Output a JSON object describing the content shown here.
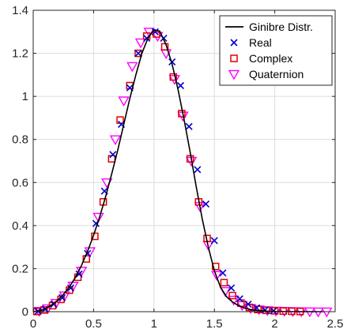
{
  "chart_data": {
    "type": "scatter",
    "title": "",
    "xlabel": "",
    "ylabel": "",
    "xlim": [
      0,
      2.5
    ],
    "ylim": [
      0,
      1.4
    ],
    "xticks": [
      0,
      0.5,
      1,
      1.5,
      2,
      2.5
    ],
    "xtick_labels": [
      "0",
      "0.5",
      "1",
      "1.5",
      "2",
      "2.5"
    ],
    "yticks": [
      0,
      0.2,
      0.4,
      0.6,
      0.8,
      1.0,
      1.2,
      1.4
    ],
    "ytick_labels": [
      "0",
      "0.2",
      "0.4",
      "0.6",
      "0.8",
      "1",
      "1.2",
      "1.4"
    ],
    "grid": true,
    "legend_position": "top-right",
    "colors": {
      "line": "#000000",
      "real": "#0000cc",
      "complex": "#e00000",
      "quaternion": "#ff00ff",
      "grid": "#dcdcdc",
      "axes": "#262626"
    },
    "series": [
      {
        "name": "Ginibre Distr.",
        "kind": "line",
        "marker": "none",
        "x": [
          0,
          0.05,
          0.1,
          0.15,
          0.2,
          0.25,
          0.3,
          0.35,
          0.4,
          0.45,
          0.5,
          0.55,
          0.6,
          0.65,
          0.7,
          0.75,
          0.8,
          0.85,
          0.9,
          0.95,
          1.0,
          1.05,
          1.1,
          1.15,
          1.2,
          1.25,
          1.3,
          1.35,
          1.4,
          1.45,
          1.5,
          1.55,
          1.6,
          1.65,
          1.7,
          1.75,
          1.8,
          1.85,
          1.9,
          1.95,
          2.0,
          2.1,
          2.2,
          2.3,
          2.4
        ],
        "y": [
          0.0,
          0.003,
          0.013,
          0.03,
          0.052,
          0.08,
          0.115,
          0.16,
          0.215,
          0.28,
          0.355,
          0.44,
          0.535,
          0.64,
          0.75,
          0.87,
          0.99,
          1.1,
          1.2,
          1.27,
          1.31,
          1.3,
          1.24,
          1.15,
          1.03,
          0.89,
          0.74,
          0.58,
          0.43,
          0.3,
          0.19,
          0.115,
          0.07,
          0.045,
          0.028,
          0.017,
          0.01,
          0.006,
          0.004,
          0.002,
          0.001,
          0.0005,
          0.0002,
          0.0001,
          0.0
        ]
      },
      {
        "name": "Real",
        "kind": "scatter",
        "marker": "x",
        "x": [
          0.04,
          0.1,
          0.17,
          0.24,
          0.31,
          0.38,
          0.45,
          0.52,
          0.59,
          0.66,
          0.73,
          0.8,
          0.87,
          0.94,
          1.01,
          1.08,
          1.15,
          1.22,
          1.29,
          1.36,
          1.43,
          1.5,
          1.57,
          1.64,
          1.71,
          1.78,
          1.85,
          1.92,
          1.99
        ],
        "y": [
          0.002,
          0.012,
          0.035,
          0.065,
          0.11,
          0.175,
          0.27,
          0.41,
          0.56,
          0.73,
          0.87,
          1.04,
          1.2,
          1.27,
          1.3,
          1.27,
          1.16,
          1.05,
          0.86,
          0.66,
          0.5,
          0.33,
          0.18,
          0.11,
          0.06,
          0.035,
          0.018,
          0.008,
          0.004
        ]
      },
      {
        "name": "Complex",
        "kind": "scatter",
        "marker": "square",
        "x": [
          0.03,
          0.09,
          0.16,
          0.23,
          0.3,
          0.37,
          0.44,
          0.51,
          0.58,
          0.65,
          0.72,
          0.8,
          0.87,
          0.94,
          1.02,
          1.09,
          1.16,
          1.23,
          1.3,
          1.37,
          1.44,
          1.51,
          1.58,
          1.65,
          1.72,
          1.79,
          1.86,
          1.93,
          2.0,
          2.07,
          2.14,
          2.21
        ],
        "y": [
          0.001,
          0.008,
          0.028,
          0.057,
          0.1,
          0.16,
          0.245,
          0.35,
          0.51,
          0.71,
          0.89,
          1.05,
          1.2,
          1.28,
          1.29,
          1.23,
          1.09,
          0.92,
          0.71,
          0.51,
          0.34,
          0.21,
          0.135,
          0.075,
          0.04,
          0.02,
          0.01,
          0.006,
          0.004,
          0.003,
          0.002,
          0.001
        ]
      },
      {
        "name": "Quaternion",
        "kind": "scatter",
        "marker": "triangle-down",
        "x": [
          0.05,
          0.12,
          0.19,
          0.26,
          0.33,
          0.4,
          0.47,
          0.54,
          0.61,
          0.68,
          0.75,
          0.82,
          0.89,
          0.96,
          1.03,
          1.1,
          1.17,
          1.24,
          1.31,
          1.38,
          1.45,
          1.52,
          1.59,
          1.66,
          1.73,
          1.8,
          1.87,
          1.94,
          2.01,
          2.08,
          2.15,
          2.22,
          2.29,
          2.36,
          2.43
        ],
        "y": [
          0.003,
          0.015,
          0.04,
          0.075,
          0.12,
          0.19,
          0.28,
          0.44,
          0.6,
          0.8,
          0.98,
          1.14,
          1.25,
          1.3,
          1.28,
          1.2,
          1.08,
          0.91,
          0.7,
          0.49,
          0.31,
          0.17,
          0.095,
          0.055,
          0.03,
          0.016,
          0.01,
          0.006,
          0.004,
          0.003,
          0.002,
          0.001,
          0.0006,
          0.0003,
          0.0002
        ]
      }
    ]
  }
}
